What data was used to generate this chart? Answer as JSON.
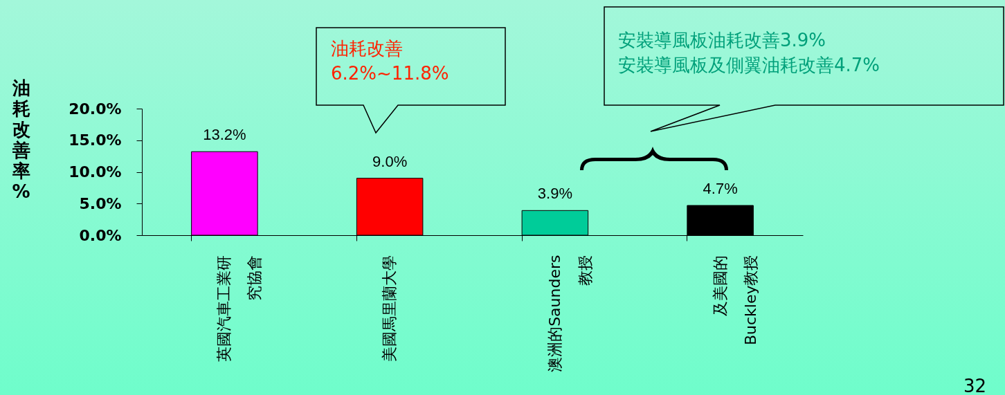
{
  "chart_data": {
    "type": "bar",
    "ylabel": "油耗改善率%",
    "categories": [
      "英國汽車工業研究協會",
      "美國馬里蘭大學",
      "澳洲的Saunders教授",
      "及美國的Buckley教授"
    ],
    "values": [
      13.2,
      9.0,
      3.9,
      4.7
    ],
    "colors": [
      "#ff00ff",
      "#ff0000",
      "#00cc99",
      "#000000"
    ],
    "value_labels": [
      "13.2%",
      "9.0%",
      "3.9%",
      "4.7%"
    ],
    "ylim": [
      0,
      20
    ],
    "yticks": [
      {
        "value": 0,
        "label": "0.0%"
      },
      {
        "value": 5,
        "label": "5.0%"
      },
      {
        "value": 10,
        "label": "10.0%"
      },
      {
        "value": 15,
        "label": "15.0%"
      },
      {
        "value": 20,
        "label": "20.0%"
      }
    ],
    "annotations": [
      "油耗改善\n6.2%~11.8%",
      "安裝導風板油耗改善3.9%\n安裝導風板及側翼油耗改善4.7%",
      "32"
    ]
  }
}
